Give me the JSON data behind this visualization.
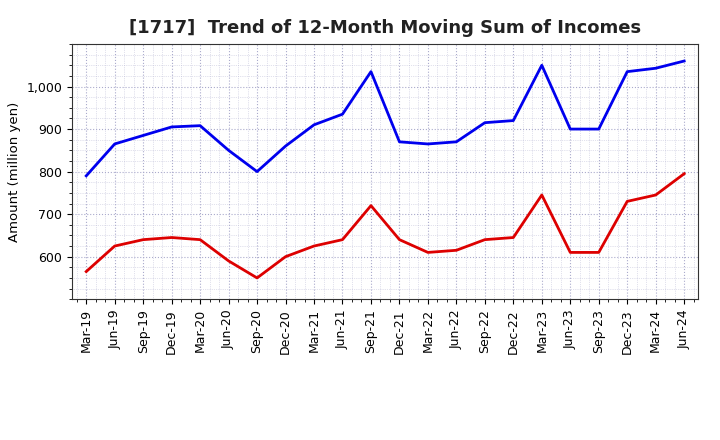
{
  "title": "[1717]  Trend of 12-Month Moving Sum of Incomes",
  "ylabel": "Amount (million yen)",
  "background_color": "#ffffff",
  "plot_background_color": "#ffffff",
  "grid_color": "#aaaacc",
  "x_labels": [
    "Mar-19",
    "Jun-19",
    "Sep-19",
    "Dec-19",
    "Mar-20",
    "Jun-20",
    "Sep-20",
    "Dec-20",
    "Mar-21",
    "Jun-21",
    "Sep-21",
    "Dec-21",
    "Mar-22",
    "Jun-22",
    "Sep-22",
    "Dec-22",
    "Mar-23",
    "Jun-23",
    "Sep-23",
    "Dec-23",
    "Mar-24",
    "Jun-24"
  ],
  "ordinary_income": [
    790,
    865,
    885,
    905,
    908,
    850,
    800,
    860,
    910,
    935,
    1035,
    870,
    865,
    870,
    915,
    920,
    1050,
    900,
    900,
    1035,
    1043,
    1060
  ],
  "net_income": [
    565,
    625,
    640,
    645,
    640,
    590,
    550,
    600,
    625,
    640,
    720,
    640,
    610,
    615,
    640,
    645,
    745,
    610,
    610,
    730,
    745,
    795
  ],
  "ordinary_color": "#0000ee",
  "net_color": "#dd0000",
  "ylim_min": 500,
  "ylim_max": 1100,
  "yticks": [
    600,
    700,
    800,
    900,
    1000
  ],
  "line_width": 2.0,
  "title_fontsize": 13,
  "axis_fontsize": 9.5,
  "tick_fontsize": 9,
  "legend_fontsize": 10
}
